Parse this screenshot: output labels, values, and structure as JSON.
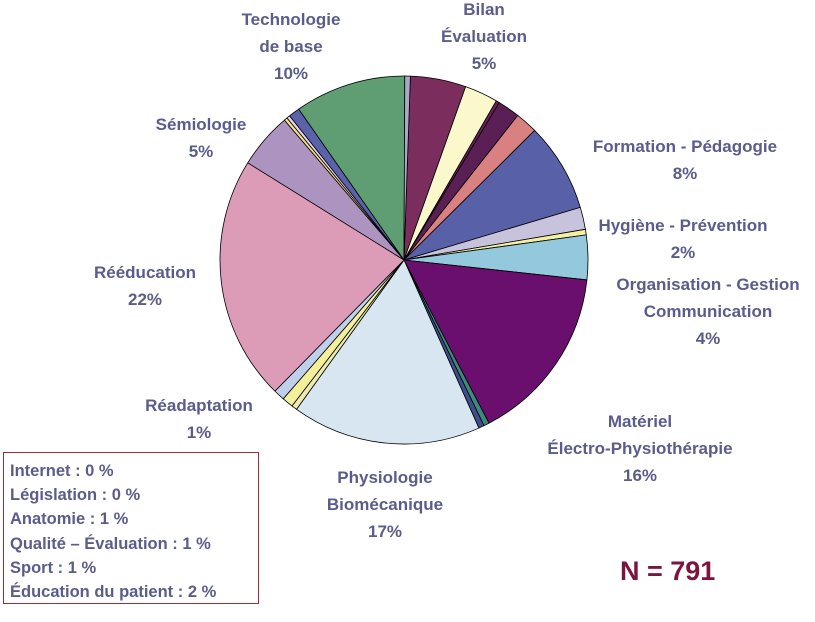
{
  "chart_data": {
    "type": "pie",
    "slices": [
      {
        "label": "Bilan Évaluation",
        "value": 5,
        "color": "#7b2e5e",
        "show": true,
        "lines": [
          "Bilan",
          "Évaluation",
          "5%"
        ]
      },
      {
        "label": "",
        "value": 3,
        "color": "#fbf8cc"
      },
      {
        "label": "",
        "value": 0.3,
        "color": "#6b1f5b"
      },
      {
        "label": "",
        "value": 2,
        "color": "#5a1f55"
      },
      {
        "label": "",
        "value": 2,
        "color": "#d98080"
      },
      {
        "label": "Formation - Pédagogie",
        "value": 8,
        "color": "#5860a8",
        "show": true,
        "lines": [
          "Formation - Pédagogie",
          "8%"
        ]
      },
      {
        "label": "Hygiène - Prévention",
        "value": 2,
        "color": "#c8c3dc",
        "show": true,
        "lines": [
          "Hygiène - Prévention",
          "2%"
        ]
      },
      {
        "label": "",
        "value": 0.5,
        "color": "#f3f0a3"
      },
      {
        "label": "Organisation - Gestion Communication",
        "value": 4,
        "color": "#94c8dc",
        "show": true,
        "lines": [
          "Organisation - Gestion",
          "Communication",
          "4%"
        ]
      },
      {
        "label": "Matériel Électro-Physiothérapie",
        "value": 16,
        "color": "#6a0f6e",
        "show": true,
        "lines": [
          "Matériel",
          "Électro-Physiothérapie",
          "16%"
        ]
      },
      {
        "label": "",
        "value": 0.5,
        "color": "#3c8a7c"
      },
      {
        "label": "",
        "value": 0.5,
        "color": "#3c4f8a"
      },
      {
        "label": "Physiologie Biomécanique",
        "value": 17,
        "color": "#d8e6f2",
        "show": true,
        "lines": [
          "Physiologie",
          "Biomécanique",
          "17%"
        ]
      },
      {
        "label": "",
        "value": 0.5,
        "color": "#ececb2"
      },
      {
        "label": "Réadaptation",
        "value": 1,
        "color": "#f3ef9b",
        "show": true,
        "lines": [
          "Réadaptation",
          "1%"
        ]
      },
      {
        "label": "",
        "value": 1,
        "color": "#c0d0ea"
      },
      {
        "label": "Rééducation",
        "value": 22,
        "color": "#dc9cb8",
        "show": true,
        "lines": [
          "Rééducation",
          "22%"
        ]
      },
      {
        "label": "Sémiologie",
        "value": 5,
        "color": "#ad93c0",
        "show": true,
        "lines": [
          "Sémiologie",
          "5%"
        ]
      },
      {
        "label": "",
        "value": 0.3,
        "color": "#f3e08a"
      },
      {
        "label": "",
        "value": 0.3,
        "color": "#e8d6f0"
      },
      {
        "label": "",
        "value": 1,
        "color": "#5b62aa"
      },
      {
        "label": "Technologie de base",
        "value": 10,
        "color": "#5e9e72",
        "show": true,
        "lines": [
          "Technologie",
          "de base",
          "10%"
        ]
      },
      {
        "label": "",
        "value": 0.5,
        "color": "#a8a8c8"
      }
    ]
  },
  "legend_box": {
    "lines": [
      "Internet : 0 %",
      "Législation : 0 %",
      "Anatomie : 1 %",
      "Qualité – Évaluation : 1 %",
      "Sport : 1 %",
      "Éducation du patient : 2 %"
    ]
  },
  "sample_size": "N = 791",
  "colors": {
    "label_text": "#5a5c8c",
    "n_text": "#7a1540",
    "box_border": "#9b2f35"
  }
}
